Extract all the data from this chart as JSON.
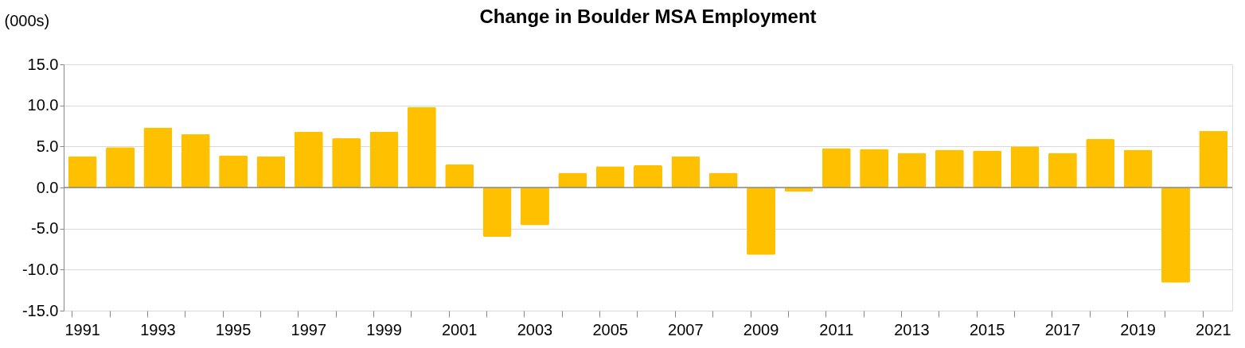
{
  "chart_data": {
    "type": "bar",
    "title": "Change in Boulder MSA Employment",
    "ylabel": "(000s)",
    "categories": [
      "1991",
      null,
      "1993",
      null,
      "1995",
      null,
      "1997",
      null,
      "1999",
      null,
      "2001",
      null,
      "2003",
      null,
      "2005",
      null,
      "2007",
      null,
      "2009",
      null,
      "2011",
      null,
      "2013",
      null,
      "2015",
      null,
      "2017",
      null,
      "2019",
      null,
      "2021"
    ],
    "values": [
      3.8,
      4.9,
      7.3,
      6.5,
      3.9,
      3.8,
      6.8,
      6.0,
      6.8,
      9.8,
      2.8,
      -6.0,
      -4.6,
      1.8,
      2.6,
      2.7,
      3.8,
      1.8,
      -8.2,
      -0.5,
      4.8,
      4.7,
      4.2,
      4.6,
      4.5,
      5.0,
      4.2,
      5.9,
      4.6,
      -11.6,
      6.9
    ],
    "color": "#ffc000",
    "ylim": [
      -15,
      15
    ],
    "yticks": [
      {
        "value": -15,
        "label": "-15.0"
      },
      {
        "value": -10,
        "label": "-10.0"
      },
      {
        "value": -5,
        "label": "-5.0"
      },
      {
        "value": 0,
        "label": "0.0"
      },
      {
        "value": 5,
        "label": "5.0"
      },
      {
        "value": 10,
        "label": "10.0"
      },
      {
        "value": 15,
        "label": "15.0"
      }
    ],
    "grid": "y"
  }
}
